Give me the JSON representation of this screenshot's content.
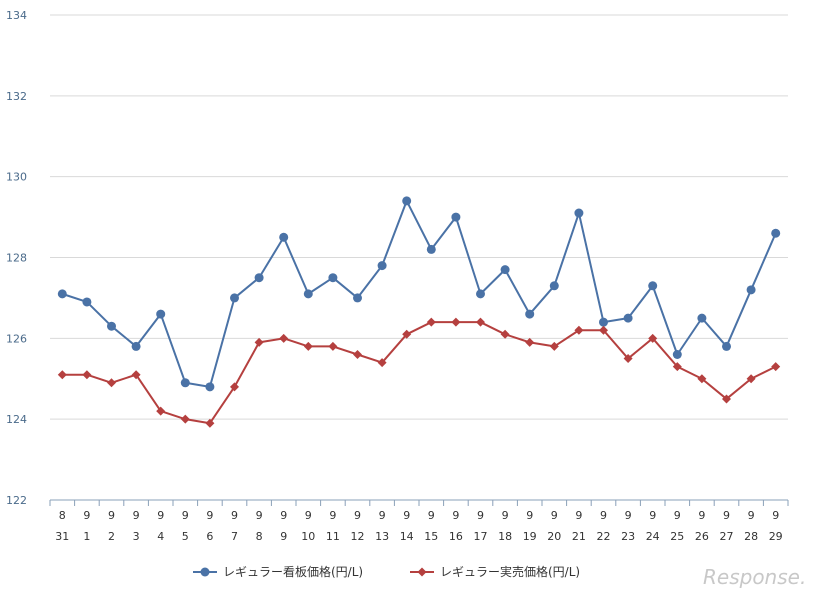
{
  "chart_data": {
    "type": "line",
    "x_month": [
      "8",
      "9",
      "9",
      "9",
      "9",
      "9",
      "9",
      "9",
      "9",
      "9",
      "9",
      "9",
      "9",
      "9",
      "9",
      "9",
      "9",
      "9",
      "9",
      "9",
      "9",
      "9",
      "9",
      "9",
      "9",
      "9",
      "9",
      "9",
      "9",
      "9"
    ],
    "x_day": [
      "31",
      "1",
      "2",
      "3",
      "4",
      "5",
      "6",
      "7",
      "8",
      "9",
      "10",
      "11",
      "12",
      "13",
      "14",
      "15",
      "16",
      "17",
      "18",
      "19",
      "20",
      "21",
      "22",
      "23",
      "24",
      "25",
      "26",
      "27",
      "28",
      "29"
    ],
    "ylim": [
      122,
      134
    ],
    "yticks": [
      "122",
      "124",
      "126",
      "128",
      "130",
      "132",
      "134"
    ],
    "grid": true,
    "legend_position": "bottom",
    "series": [
      {
        "name": "レギュラー看板価格(円/L)",
        "color": "#4a72a6",
        "marker": "circle",
        "values": [
          127.1,
          126.9,
          126.3,
          125.8,
          126.6,
          124.9,
          124.8,
          127.0,
          127.5,
          128.5,
          127.1,
          127.5,
          127.0,
          127.8,
          129.4,
          128.2,
          129.0,
          127.1,
          127.7,
          126.6,
          127.3,
          129.1,
          126.4,
          126.5,
          127.3,
          125.6,
          126.5,
          125.8,
          127.2,
          128.6
        ]
      },
      {
        "name": "レギュラー実売価格(円/L)",
        "color": "#b5403f",
        "marker": "diamond",
        "values": [
          125.1,
          125.1,
          124.9,
          125.1,
          124.2,
          124.0,
          123.9,
          124.8,
          125.9,
          126.0,
          125.8,
          125.8,
          125.6,
          125.4,
          126.1,
          126.4,
          126.4,
          126.4,
          126.1,
          125.9,
          125.8,
          126.2,
          126.2,
          125.5,
          126.0,
          125.3,
          125.0,
          124.5,
          125.0,
          125.3
        ]
      }
    ]
  },
  "watermark": "Response."
}
